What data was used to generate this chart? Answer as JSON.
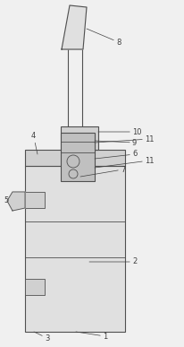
{
  "bg_color": "#f0f0f0",
  "line_color": "#505050",
  "fill_light": "#e0e0e0",
  "fill_medium": "#d0d0d0",
  "fill_dark": "#c0c0c0",
  "label_fontsize": 6.0,
  "label_color": "#404040",
  "fig_w": 2.06,
  "fig_h": 3.87,
  "dpi": 100
}
